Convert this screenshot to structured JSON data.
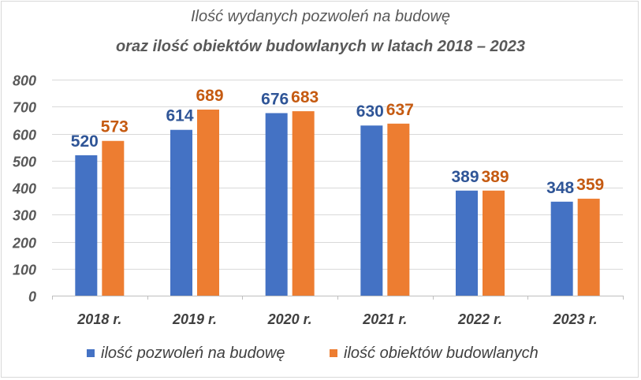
{
  "chart_data": {
    "type": "bar",
    "title_line1": "Ilość wydanych pozwoleń na budowę",
    "title_line2": "oraz ilość obiektów budowlanych w latach 2018 – 2023",
    "categories": [
      "2018 r.",
      "2019 r.",
      "2020 r.",
      "2021 r.",
      "2022 r.",
      "2023 r."
    ],
    "series": [
      {
        "name": "ilość pozwoleń na budowę",
        "color": "#4472C4",
        "values": [
          520,
          614,
          676,
          630,
          389,
          348
        ]
      },
      {
        "name": "ilość obiektów budowlanych",
        "color": "#ED7D31",
        "values": [
          573,
          689,
          683,
          637,
          389,
          359
        ]
      }
    ],
    "ylim": [
      0,
      800
    ],
    "yticks": [
      0,
      100,
      200,
      300,
      400,
      500,
      600,
      700,
      800
    ],
    "grid": true,
    "data_labels": true,
    "legend_position": "bottom"
  }
}
